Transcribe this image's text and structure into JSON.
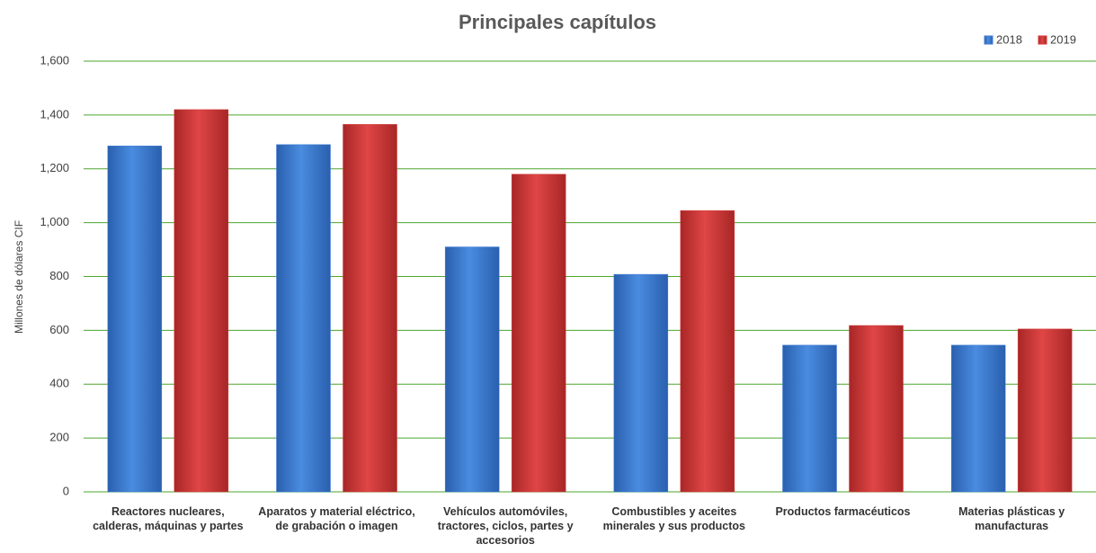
{
  "chart_data": {
    "type": "bar",
    "title": "Principales capítulos",
    "y_label": "Millones de dólares CIF",
    "categories": [
      "Reactores nucleares, calderas, máquinas y partes",
      "Aparatos y material eléctrico, de grabación o imagen",
      "Vehículos automóviles, tractores, ciclos, partes y accesorios",
      "Combustibles y aceites minerales y sus productos",
      "Productos farmacéuticos",
      "Materias plásticas y manufacturas"
    ],
    "series": [
      {
        "name": "2018",
        "color": "#3f7fd6",
        "values": [
          1285,
          1290,
          910,
          808,
          545,
          545
        ]
      },
      {
        "name": "2019",
        "color": "#d63a3a",
        "values": [
          1420,
          1365,
          1180,
          1045,
          618,
          605
        ]
      }
    ],
    "ylim": [
      0,
      1600
    ],
    "yticks": [
      0,
      200,
      400,
      600,
      800,
      {
        "value": 1000,
        "label": "1,000"
      },
      {
        "value": 1200,
        "label": "1,200"
      },
      {
        "value": 1400,
        "label": "1,400"
      },
      {
        "value": 1600,
        "label": "1,600"
      }
    ],
    "grid": true,
    "grid_color": "#4ca62c",
    "legend": "top-right"
  }
}
